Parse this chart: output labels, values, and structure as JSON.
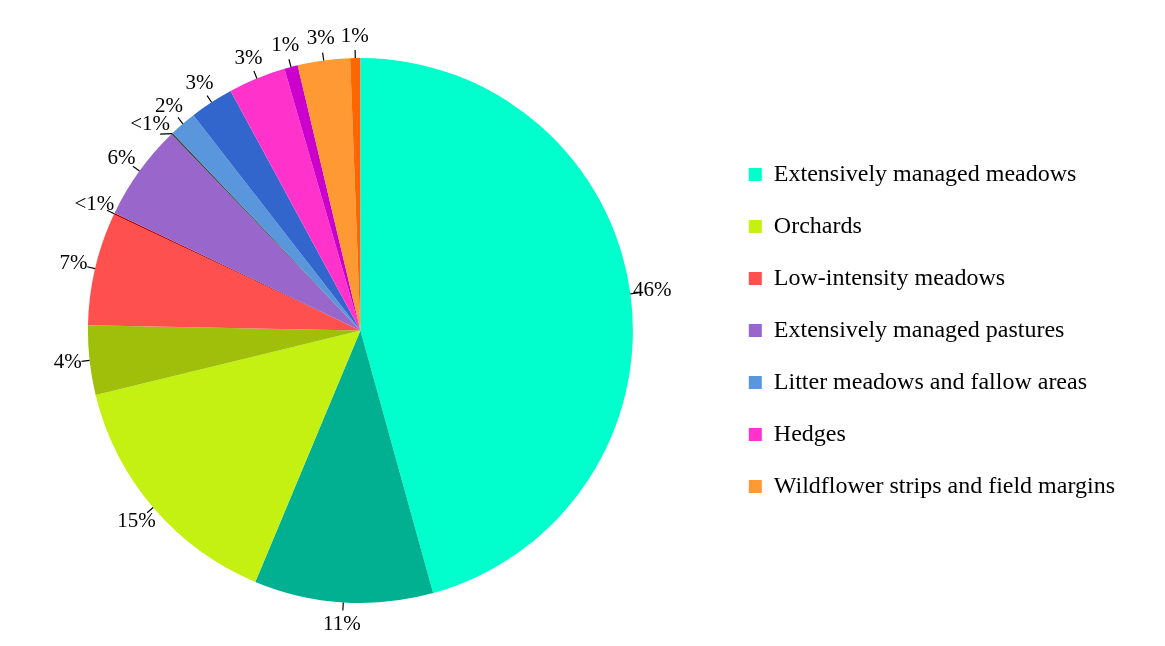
{
  "chart_data": {
    "type": "pie",
    "categories": [
      "Extensively managed meadows",
      null,
      "Orchards",
      null,
      "Low-intensity meadows",
      null,
      "Extensively managed pastures",
      null,
      "Litter meadows and fallow areas",
      null,
      "Hedges",
      null,
      "Wildflower strips and field margins",
      null
    ],
    "values": [
      45.7,
      10.6,
      14.9,
      4.1,
      6.7,
      0.1,
      5.7,
      0.1,
      1.6,
      2.6,
      3.4,
      0.8,
      3.1,
      0.6
    ],
    "colors": [
      "#00ffcc",
      "#00b090",
      "#c4f012",
      "#9fbf0a",
      "#ff5050",
      "#c00000",
      "#9966cc",
      "#404040",
      "#5a96dc",
      "#3366cc",
      "#ff33cc",
      "#cc00cc",
      "#ff9933",
      "#ff6600"
    ],
    "value_labels": [
      "46%",
      "11%",
      "15%",
      "4%",
      "7%",
      "<1%",
      "6%",
      "<1%",
      "2%",
      "3%",
      "3%",
      "1%",
      "3%",
      "1%"
    ],
    "legend": "right"
  }
}
